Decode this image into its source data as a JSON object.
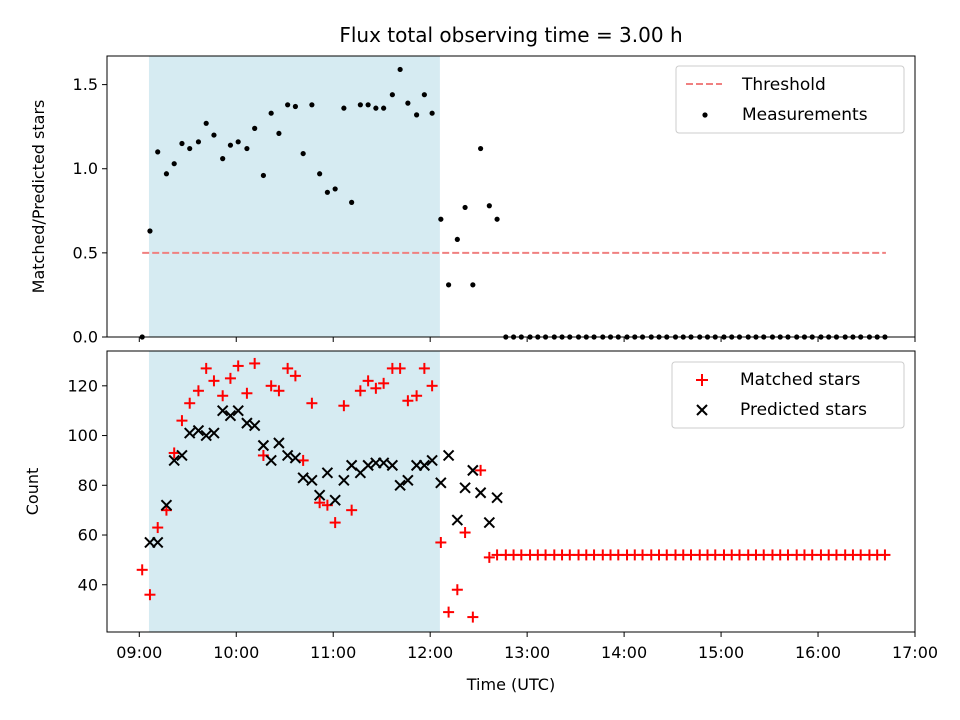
{
  "chart_data": {
    "title": "Flux total observing time = 3.00 h",
    "xlabel": "Time (UTC)",
    "x_unit": "hours (UTC)",
    "xlim": [
      8.667,
      17.0
    ],
    "xticks": [
      9,
      10,
      11,
      12,
      13,
      14,
      15,
      16,
      17
    ],
    "xtick_labels": [
      "09:00",
      "10:00",
      "11:00",
      "12:00",
      "13:00",
      "14:00",
      "15:00",
      "16:00",
      "17:00"
    ],
    "shaded_span": {
      "x_start": 9.1,
      "x_end": 12.1,
      "color": "#add8e6"
    },
    "panels": [
      {
        "type": "scatter",
        "ylabel": "Matched/Predicted stars",
        "ylim": [
          0,
          1.67
        ],
        "yticks": [
          0.0,
          0.5,
          1.0,
          1.5
        ],
        "ytick_labels": [
          "0.0",
          "0.5",
          "1.0",
          "1.5"
        ],
        "legend_position": "top-right",
        "threshold": {
          "name": "Threshold",
          "y": 0.5,
          "x_range": [
            9.03,
            16.7
          ],
          "color": "#f08080"
        },
        "series": [
          {
            "name": "Measurements",
            "color": "#000000",
            "marker": "dot",
            "x": [
              9.03,
              9.11,
              9.19,
              9.28,
              9.36,
              9.44,
              9.52,
              9.61,
              9.69,
              9.77,
              9.86,
              9.94,
              10.02,
              10.11,
              10.19,
              10.28,
              10.36,
              10.44,
              10.53,
              10.61,
              10.69,
              10.78,
              10.86,
              10.94,
              11.02,
              11.11,
              11.19,
              11.28,
              11.36,
              11.44,
              11.52,
              11.61,
              11.69,
              11.77,
              11.86,
              11.94,
              12.02,
              12.11,
              12.19,
              12.28,
              12.36,
              12.44,
              12.52,
              12.61,
              12.69,
              12.78,
              12.86,
              12.94,
              13.03,
              13.11,
              13.19,
              13.28,
              13.36,
              13.44,
              13.53,
              13.61,
              13.69,
              13.78,
              13.86,
              13.94,
              14.03,
              14.11,
              14.19,
              14.28,
              14.36,
              14.44,
              14.53,
              14.61,
              14.69,
              14.78,
              14.86,
              14.94,
              15.03,
              15.11,
              15.19,
              15.28,
              15.36,
              15.44,
              15.53,
              15.61,
              15.69,
              15.78,
              15.86,
              15.94,
              16.03,
              16.11,
              16.19,
              16.28,
              16.36,
              16.44,
              16.53,
              16.61,
              16.69
            ],
            "y": [
              0.0,
              0.63,
              1.1,
              0.97,
              1.03,
              1.15,
              1.12,
              1.16,
              1.27,
              1.2,
              1.06,
              1.14,
              1.16,
              1.12,
              1.24,
              0.96,
              1.33,
              1.21,
              1.38,
              1.37,
              1.09,
              1.38,
              0.97,
              0.86,
              0.88,
              1.36,
              0.8,
              1.38,
              1.38,
              1.36,
              1.36,
              1.44,
              1.59,
              1.39,
              1.32,
              1.44,
              1.33,
              0.7,
              0.31,
              0.58,
              0.77,
              0.31,
              1.12,
              0.78,
              0.7,
              0.0,
              0.0,
              0.0,
              0.0,
              0.0,
              0.0,
              0.0,
              0.0,
              0.0,
              0.0,
              0.0,
              0.0,
              0.0,
              0.0,
              0.0,
              0.0,
              0.0,
              0.0,
              0.0,
              0.0,
              0.0,
              0.0,
              0.0,
              0.0,
              0.0,
              0.0,
              0.0,
              0.0,
              0.0,
              0.0,
              0.0,
              0.0,
              0.0,
              0.0,
              0.0,
              0.0,
              0.0,
              0.0,
              0.0,
              0.0,
              0.0,
              0.0,
              0.0,
              0.0,
              0.0,
              0.0,
              0.0,
              0.0
            ]
          }
        ]
      },
      {
        "type": "scatter",
        "ylabel": "Count",
        "ylim": [
          21,
          134
        ],
        "yticks": [
          40,
          60,
          80,
          100,
          120
        ],
        "ytick_labels": [
          "40",
          "60",
          "80",
          "100",
          "120"
        ],
        "legend_position": "top-right",
        "series": [
          {
            "name": "Matched stars",
            "color": "#ff0000",
            "marker": "plus",
            "x": [
              9.03,
              9.11,
              9.19,
              9.28,
              9.36,
              9.44,
              9.52,
              9.61,
              9.69,
              9.77,
              9.86,
              9.94,
              10.02,
              10.11,
              10.19,
              10.28,
              10.36,
              10.44,
              10.53,
              10.61,
              10.69,
              10.78,
              10.86,
              10.94,
              11.02,
              11.11,
              11.19,
              11.28,
              11.36,
              11.44,
              11.52,
              11.61,
              11.69,
              11.77,
              11.86,
              11.94,
              12.02,
              12.11,
              12.19,
              12.28,
              12.36,
              12.44,
              12.52,
              12.61,
              12.69,
              12.78,
              12.86,
              12.94,
              13.03,
              13.11,
              13.19,
              13.28,
              13.36,
              13.44,
              13.53,
              13.61,
              13.69,
              13.78,
              13.86,
              13.94,
              14.03,
              14.11,
              14.19,
              14.28,
              14.36,
              14.44,
              14.53,
              14.61,
              14.69,
              14.78,
              14.86,
              14.94,
              15.03,
              15.11,
              15.19,
              15.28,
              15.36,
              15.44,
              15.53,
              15.61,
              15.69,
              15.78,
              15.86,
              15.94,
              16.03,
              16.11,
              16.19,
              16.28,
              16.36,
              16.44,
              16.53,
              16.61,
              16.69
            ],
            "y": [
              46,
              36,
              63,
              70,
              93,
              106,
              113,
              118,
              127,
              122,
              116,
              123,
              128,
              117,
              129,
              92,
              120,
              118,
              127,
              124,
              90,
              113,
              73,
              72,
              65,
              112,
              70,
              118,
              122,
              119,
              121,
              127,
              127,
              114,
              116,
              127,
              120,
              57,
              29,
              38,
              61,
              27,
              86,
              51,
              52,
              52,
              52,
              52,
              52,
              52,
              52,
              52,
              52,
              52,
              52,
              52,
              52,
              52,
              52,
              52,
              52,
              52,
              52,
              52,
              52,
              52,
              52,
              52,
              52,
              52,
              52,
              52,
              52,
              52,
              52,
              52,
              52,
              52,
              52,
              52,
              52,
              52,
              52,
              52,
              52,
              52,
              52,
              52,
              52,
              52,
              52,
              52,
              52
            ]
          },
          {
            "name": "Predicted stars",
            "color": "#000000",
            "marker": "x",
            "x": [
              9.11,
              9.19,
              9.28,
              9.36,
              9.44,
              9.52,
              9.61,
              9.69,
              9.77,
              9.86,
              9.94,
              10.02,
              10.11,
              10.19,
              10.28,
              10.36,
              10.44,
              10.53,
              10.61,
              10.69,
              10.78,
              10.86,
              10.94,
              11.02,
              11.11,
              11.19,
              11.28,
              11.36,
              11.44,
              11.52,
              11.61,
              11.69,
              11.77,
              11.86,
              11.94,
              12.02,
              12.11,
              12.19,
              12.28,
              12.36,
              12.44,
              12.52,
              12.61,
              12.69
            ],
            "y": [
              57,
              57,
              72,
              90,
              92,
              101,
              102,
              100,
              101,
              110,
              108,
              110,
              105,
              104,
              96,
              90,
              97,
              92,
              91,
              83,
              82,
              76,
              85,
              74,
              82,
              88,
              85,
              88,
              89,
              89,
              88,
              80,
              82,
              88,
              88,
              90,
              81,
              92,
              66,
              79,
              86,
              77,
              65,
              75
            ]
          }
        ]
      }
    ]
  }
}
